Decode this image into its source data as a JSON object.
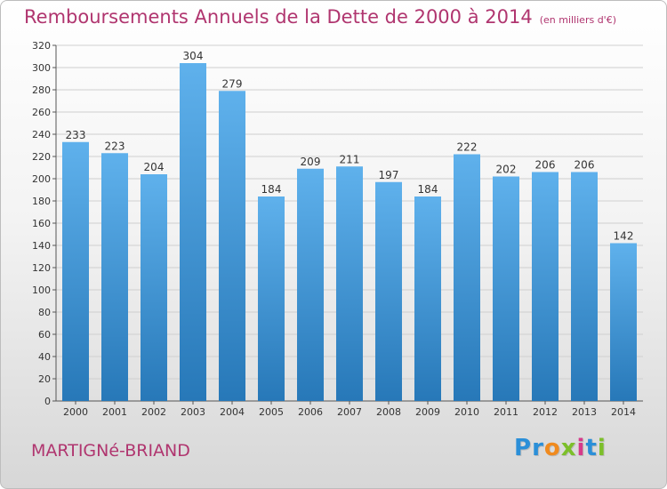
{
  "header": {
    "title": "Remboursements Annuels de la Dette de 2000 à 2014",
    "unit_note": "(en milliers d'€)"
  },
  "footer": {
    "commune": "MARTIGNé-BRIAND",
    "brand_letters": [
      "P",
      "r",
      "o",
      "x",
      "i",
      "t",
      "i"
    ]
  },
  "colors": {
    "bar_top": "#5fb1ec",
    "bar_bottom": "#2778b8",
    "title": "#b0356f",
    "brand": [
      "#2b8fd8",
      "#2b8fd8",
      "#f08a1e",
      "#7cbf2a",
      "#d63a8a",
      "#2b8fd8",
      "#7cbf2a"
    ]
  },
  "chart_data": {
    "type": "bar",
    "categories": [
      "2000",
      "2001",
      "2002",
      "2003",
      "2004",
      "2005",
      "2006",
      "2007",
      "2008",
      "2009",
      "2010",
      "2011",
      "2012",
      "2013",
      "2014"
    ],
    "values": [
      233,
      223,
      204,
      304,
      279,
      184,
      209,
      211,
      197,
      184,
      222,
      202,
      206,
      206,
      142
    ],
    "ylim": [
      0,
      320
    ],
    "yticks": [
      0,
      20,
      40,
      60,
      80,
      100,
      120,
      140,
      160,
      180,
      200,
      220,
      240,
      260,
      280,
      300,
      320
    ],
    "grid": true,
    "legend": "none"
  }
}
